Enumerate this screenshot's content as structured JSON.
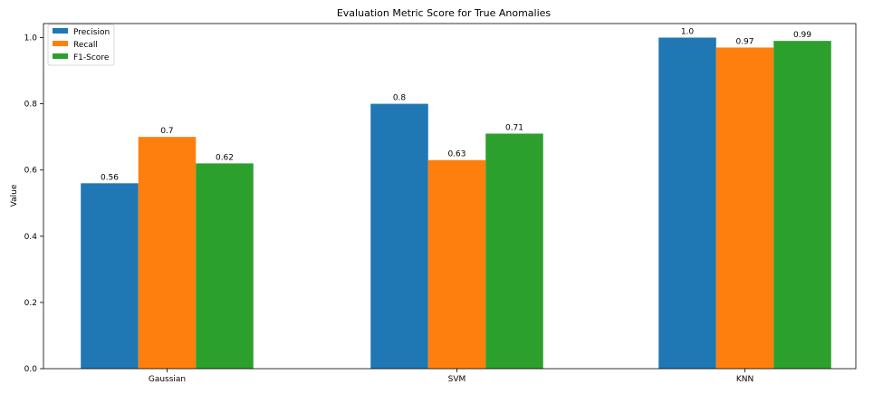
{
  "chart_data": {
    "type": "bar",
    "title": "Evaluation Metric Score for True Anomalies",
    "xlabel": "",
    "ylabel": "Value",
    "categories": [
      "Gaussian",
      "SVM",
      "KNN"
    ],
    "series": [
      {
        "name": "Precision",
        "color": "#1f77b4",
        "values": [
          0.56,
          0.8,
          1.0
        ],
        "labels": [
          "0.56",
          "0.8",
          "1.0"
        ]
      },
      {
        "name": "Recall",
        "color": "#ff7f0e",
        "values": [
          0.7,
          0.63,
          0.97
        ],
        "labels": [
          "0.7",
          "0.63",
          "0.97"
        ]
      },
      {
        "name": "F1-Score",
        "color": "#2ca02c",
        "values": [
          0.62,
          0.71,
          0.99
        ],
        "labels": [
          "0.62",
          "0.71",
          "0.99"
        ]
      }
    ],
    "ylim": [
      0,
      1.0
    ],
    "yticks": [
      "0.0",
      "0.2",
      "0.4",
      "0.6",
      "0.8",
      "1.0"
    ],
    "grid": false,
    "legend_position": "top-left"
  }
}
